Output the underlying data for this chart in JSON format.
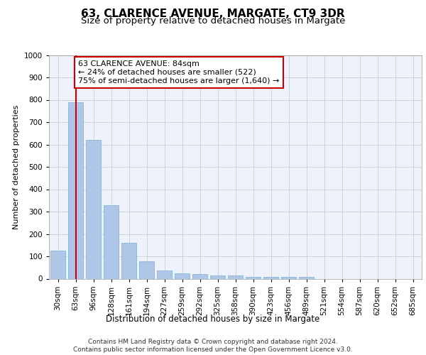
{
  "title": "63, CLARENCE AVENUE, MARGATE, CT9 3DR",
  "subtitle": "Size of property relative to detached houses in Margate",
  "xlabel": "Distribution of detached houses by size in Margate",
  "ylabel": "Number of detached properties",
  "categories": [
    "30sqm",
    "63sqm",
    "96sqm",
    "128sqm",
    "161sqm",
    "194sqm",
    "227sqm",
    "259sqm",
    "292sqm",
    "325sqm",
    "358sqm",
    "390sqm",
    "423sqm",
    "456sqm",
    "489sqm",
    "521sqm",
    "554sqm",
    "587sqm",
    "620sqm",
    "652sqm",
    "685sqm"
  ],
  "values": [
    125,
    790,
    620,
    330,
    160,
    78,
    38,
    25,
    22,
    15,
    15,
    8,
    8,
    8,
    8,
    0,
    0,
    0,
    0,
    0,
    0
  ],
  "bar_color": "#aec6e8",
  "bar_edgecolor": "#7bafd4",
  "highlight_index": 1,
  "highlight_line_color": "#cc0000",
  "ylim": [
    0,
    1000
  ],
  "yticks": [
    0,
    100,
    200,
    300,
    400,
    500,
    600,
    700,
    800,
    900,
    1000
  ],
  "grid_color": "#cccccc",
  "background_color": "#eef2fa",
  "annotation_text": "63 CLARENCE AVENUE: 84sqm\n← 24% of detached houses are smaller (522)\n75% of semi-detached houses are larger (1,640) →",
  "annotation_box_color": "#ffffff",
  "annotation_box_edgecolor": "#cc0000",
  "footer_text": "Contains HM Land Registry data © Crown copyright and database right 2024.\nContains public sector information licensed under the Open Government Licence v3.0.",
  "title_fontsize": 11,
  "subtitle_fontsize": 9.5,
  "xlabel_fontsize": 8.5,
  "ylabel_fontsize": 8,
  "tick_fontsize": 7.5,
  "annotation_fontsize": 8,
  "footer_fontsize": 6.5
}
